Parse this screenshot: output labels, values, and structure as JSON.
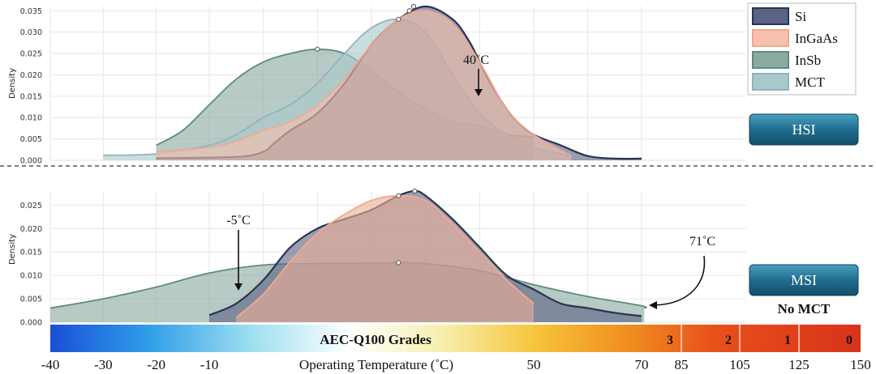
{
  "chart_data": [
    {
      "type": "area",
      "panel": "HSI",
      "ylabel": "Density",
      "ylim": [
        0,
        0.036
      ],
      "yticks": [
        "0.000",
        "0.005",
        "0.010",
        "0.015",
        "0.020",
        "0.025",
        "0.030",
        "0.035"
      ],
      "series": [
        {
          "name": "Si",
          "color": "#2a3553",
          "fill": "#5c6283",
          "x": [
            -20,
            -5,
            0,
            2,
            5,
            10,
            15,
            20,
            25,
            30,
            35,
            38,
            40,
            42,
            45,
            47,
            50,
            55,
            60,
            65,
            70
          ],
          "y": [
            0.0005,
            0.0008,
            0.002,
            0.004,
            0.007,
            0.011,
            0.018,
            0.027,
            0.033,
            0.036,
            0.033,
            0.028,
            0.023,
            0.018,
            0.012,
            0.009,
            0.006,
            0.0035,
            0.001,
            0.0004,
            0.0004
          ],
          "peak": [
            27.8,
            0.036
          ]
        },
        {
          "name": "InGaAs",
          "color": "#f2a890",
          "fill": "#f6c2ad",
          "x": [
            -20,
            -10,
            -5,
            0,
            5,
            10,
            15,
            20,
            25,
            30,
            35,
            40,
            45,
            50,
            57
          ],
          "y": [
            0.002,
            0.003,
            0.0045,
            0.007,
            0.009,
            0.013,
            0.019,
            0.027,
            0.033,
            0.035,
            0.032,
            0.023,
            0.012,
            0.006,
            0.001
          ],
          "peak": [
            27,
            0.035
          ]
        },
        {
          "name": "InSb",
          "color": "#5f8a80",
          "fill": "#8aa9a1",
          "x": [
            -20,
            -15,
            -10,
            -5,
            0,
            5,
            10,
            15,
            20,
            25,
            30,
            35,
            40,
            45,
            50
          ],
          "y": [
            0.0035,
            0.007,
            0.013,
            0.019,
            0.023,
            0.025,
            0.026,
            0.025,
            0.021,
            0.016,
            0.012,
            0.009,
            0.008,
            0.006,
            0.0055
          ],
          "peak": [
            10,
            0.026
          ]
        },
        {
          "name": "MCT",
          "color": "#8fb5bb",
          "fill": "#a9c8cb",
          "x": [
            -30,
            -20,
            -10,
            -5,
            0,
            5,
            10,
            15,
            20,
            25,
            30,
            35,
            40,
            45,
            50,
            57
          ],
          "y": [
            0.0012,
            0.0015,
            0.0035,
            0.006,
            0.01,
            0.013,
            0.018,
            0.025,
            0.031,
            0.033,
            0.03,
            0.02,
            0.011,
            0.006,
            0.003,
            0.001
          ],
          "peak": [
            25,
            0.033
          ]
        }
      ],
      "annotations": [
        {
          "text": "40˚C",
          "x": 40
        }
      ]
    },
    {
      "type": "area",
      "panel": "MSI",
      "ylabel": "Density",
      "ylim": [
        0,
        0.028
      ],
      "yticks": [
        "0.000",
        "0.005",
        "0.010",
        "0.015",
        "0.020",
        "0.025"
      ],
      "series": [
        {
          "name": "Si",
          "color": "#2a3553",
          "fill": "#5c6283",
          "x": [
            -10,
            -5,
            0,
            5,
            10,
            15,
            20,
            25,
            28,
            30,
            35,
            40,
            45,
            50,
            55,
            60,
            65,
            70
          ],
          "y": [
            0.0015,
            0.004,
            0.009,
            0.016,
            0.02,
            0.022,
            0.024,
            0.027,
            0.028,
            0.027,
            0.022,
            0.016,
            0.01,
            0.007,
            0.004,
            0.003,
            0.002,
            0.0013
          ],
          "peak": [
            28,
            0.028
          ]
        },
        {
          "name": "InGaAs",
          "color": "#f2a890",
          "fill": "#ecae98",
          "x": [
            -5,
            0,
            5,
            10,
            15,
            20,
            25,
            30,
            35,
            40,
            45,
            50
          ],
          "y": [
            0.001,
            0.006,
            0.013,
            0.019,
            0.023,
            0.026,
            0.027,
            0.026,
            0.021,
            0.015,
            0.009,
            0.004
          ],
          "peak": [
            25,
            0.027
          ]
        },
        {
          "name": "InSb",
          "color": "#5f8a80",
          "fill": "#8aa9a1",
          "x": [
            -40,
            -30,
            -20,
            -10,
            0,
            10,
            20,
            25,
            30,
            40,
            50,
            60,
            70,
            71
          ],
          "y": [
            0.003,
            0.005,
            0.0075,
            0.0105,
            0.0122,
            0.0125,
            0.0126,
            0.0127,
            0.0125,
            0.011,
            0.008,
            0.0055,
            0.0035,
            0.003
          ],
          "peak": [
            25,
            0.0127
          ]
        }
      ],
      "annotations": [
        {
          "text": "-5˚C",
          "x": -5
        },
        {
          "text": "71˚C",
          "x": 71
        }
      ]
    }
  ],
  "xaxis": {
    "label": "Operating Temperature (˚C)",
    "ticks": [
      {
        "label": "-40",
        "value": -40
      },
      {
        "label": "-30",
        "value": -30
      },
      {
        "label": "-20",
        "value": -20
      },
      {
        "label": "-10",
        "value": -10
      },
      {
        "label": "50",
        "value": 50
      },
      {
        "label": "70",
        "value": 70
      },
      {
        "label": "85",
        "value": 85
      },
      {
        "label": "105",
        "value": 105
      },
      {
        "label": "125",
        "value": 125
      },
      {
        "label": "150",
        "value": 150
      }
    ]
  },
  "grades": {
    "title": "AEC-Q100 Grades",
    "items": [
      {
        "label": "3",
        "max": 85
      },
      {
        "label": "2",
        "max": 105
      },
      {
        "label": "1",
        "max": 125
      },
      {
        "label": "0",
        "max": 150
      }
    ]
  },
  "legend": [
    "Si",
    "InGaAs",
    "InSb",
    "MCT"
  ],
  "buttons": {
    "hsi": "HSI",
    "msi": "MSI"
  },
  "note": "No MCT"
}
